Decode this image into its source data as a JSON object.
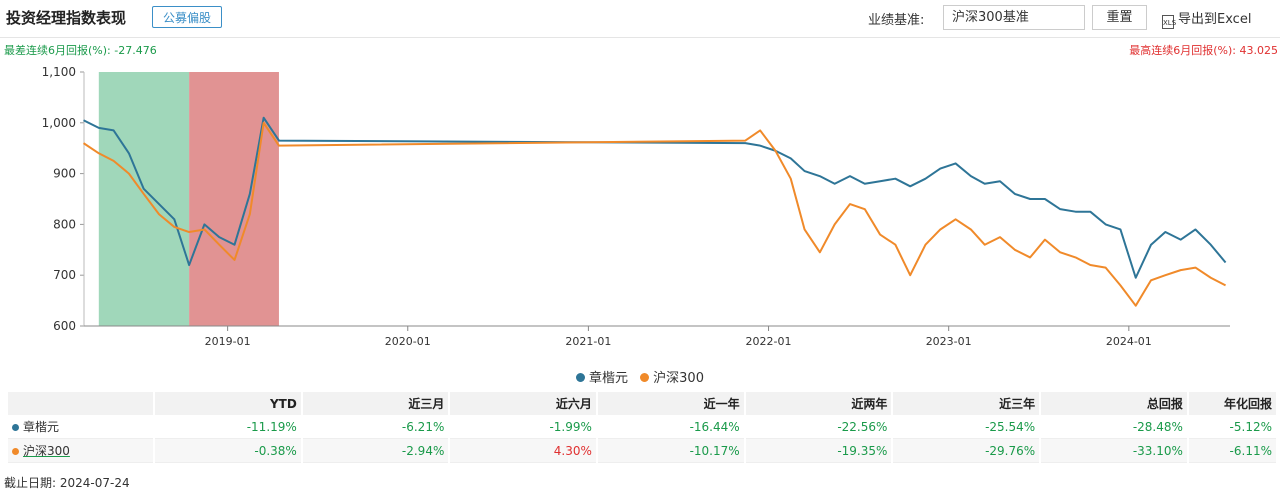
{
  "header": {
    "title": "投资经理指数表现",
    "tag": "公募偏股",
    "benchmark_label": "业绩基准:",
    "benchmark_value": "沪深300基准",
    "reset_label": "重置",
    "export_icon_text": "XLS",
    "export_label": "导出到Excel"
  },
  "summary": {
    "min_label": "最差连续6月回报(%): -27.476",
    "max_label": "最高连续6月回报(%): 43.025"
  },
  "colors": {
    "manager": "#2e7597",
    "benchmark": "#f08a2a",
    "worst_band": "#8fd0ae",
    "best_band": "#dc8080",
    "negative": "#1a9a4a",
    "positive": "#e03030"
  },
  "chart_data": {
    "type": "line",
    "ylim": [
      600,
      1100
    ],
    "yticks": [
      "1,100",
      "1,000",
      "900",
      "800",
      "700",
      "600"
    ],
    "yticks_values": [
      1100,
      1000,
      900,
      800,
      700,
      600
    ],
    "xticks": [
      "2019-01",
      "2020-01",
      "2021-01",
      "2022-01",
      "2023-01",
      "2024-01"
    ],
    "x_range": [
      "2018-03-16",
      "2024-07-24"
    ],
    "bands": [
      {
        "name": "worst",
        "start": "2018-04",
        "end": "2018-10",
        "color": "#8fd0ae"
      },
      {
        "name": "best",
        "start": "2018-10",
        "end": "2019-04",
        "color": "#dc8080"
      }
    ],
    "series": [
      {
        "name": "章楷元",
        "color": "#2e7597",
        "x": [
          "2018-03",
          "2018-04",
          "2018-05",
          "2018-06",
          "2018-07",
          "2018-08",
          "2018-09",
          "2018-10",
          "2018-11",
          "2018-12",
          "2019-01",
          "2019-02",
          "2019-03",
          "2019-04",
          "2021-11",
          "2021-12",
          "2022-01",
          "2022-02",
          "2022-03",
          "2022-04",
          "2022-05",
          "2022-06",
          "2022-07",
          "2022-08",
          "2022-09",
          "2022-10",
          "2022-11",
          "2022-12",
          "2023-01",
          "2023-02",
          "2023-03",
          "2023-04",
          "2023-05",
          "2023-06",
          "2023-07",
          "2023-08",
          "2023-09",
          "2023-10",
          "2023-11",
          "2023-12",
          "2024-01",
          "2024-02",
          "2024-03",
          "2024-04",
          "2024-05",
          "2024-06",
          "2024-07"
        ],
        "values": [
          1005,
          990,
          985,
          940,
          870,
          840,
          810,
          720,
          800,
          775,
          760,
          860,
          1010,
          965,
          960,
          955,
          945,
          930,
          905,
          895,
          880,
          895,
          880,
          885,
          890,
          875,
          890,
          910,
          920,
          895,
          880,
          885,
          860,
          850,
          850,
          830,
          825,
          825,
          800,
          790,
          695,
          760,
          785,
          770,
          790,
          760,
          725
        ]
      },
      {
        "name": "沪深300",
        "color": "#f08a2a",
        "x": [
          "2018-03",
          "2018-04",
          "2018-05",
          "2018-06",
          "2018-07",
          "2018-08",
          "2018-09",
          "2018-10",
          "2018-11",
          "2018-12",
          "2019-01",
          "2019-02",
          "2019-03",
          "2019-04",
          "2021-11",
          "2021-12",
          "2022-01",
          "2022-02",
          "2022-03",
          "2022-04",
          "2022-05",
          "2022-06",
          "2022-07",
          "2022-08",
          "2022-09",
          "2022-10",
          "2022-11",
          "2022-12",
          "2023-01",
          "2023-02",
          "2023-03",
          "2023-04",
          "2023-05",
          "2023-06",
          "2023-07",
          "2023-08",
          "2023-09",
          "2023-10",
          "2023-11",
          "2023-12",
          "2024-01",
          "2024-02",
          "2024-03",
          "2024-04",
          "2024-05",
          "2024-06",
          "2024-07"
        ],
        "values": [
          960,
          940,
          925,
          900,
          860,
          820,
          795,
          785,
          790,
          760,
          730,
          820,
          1000,
          955,
          965,
          985,
          945,
          890,
          790,
          745,
          800,
          840,
          830,
          780,
          760,
          700,
          760,
          790,
          810,
          790,
          760,
          775,
          750,
          735,
          770,
          745,
          735,
          720,
          715,
          680,
          640,
          690,
          700,
          710,
          715,
          695,
          680
        ]
      }
    ]
  },
  "legend": [
    {
      "name": "章楷元",
      "color": "#2e7597"
    },
    {
      "name": "沪深300",
      "color": "#f08a2a"
    }
  ],
  "table": {
    "headers": [
      "",
      "YTD",
      "近三月",
      "近六月",
      "近一年",
      "近两年",
      "近三年",
      "总回报",
      "年化回报"
    ],
    "rows": [
      {
        "name": "章楷元",
        "color": "#2e7597",
        "values": [
          "-11.19%",
          "-6.21%",
          "-1.99%",
          "-16.44%",
          "-22.56%",
          "-25.54%",
          "-28.48%",
          "-5.12%"
        ]
      },
      {
        "name": "沪深300",
        "color": "#f08a2a",
        "values": [
          "-0.38%",
          "-2.94%",
          "4.30%",
          "-10.17%",
          "-19.35%",
          "-29.76%",
          "-33.10%",
          "-6.11%"
        ]
      }
    ]
  },
  "footer": {
    "as_of": "截止日期: 2024-07-24"
  }
}
